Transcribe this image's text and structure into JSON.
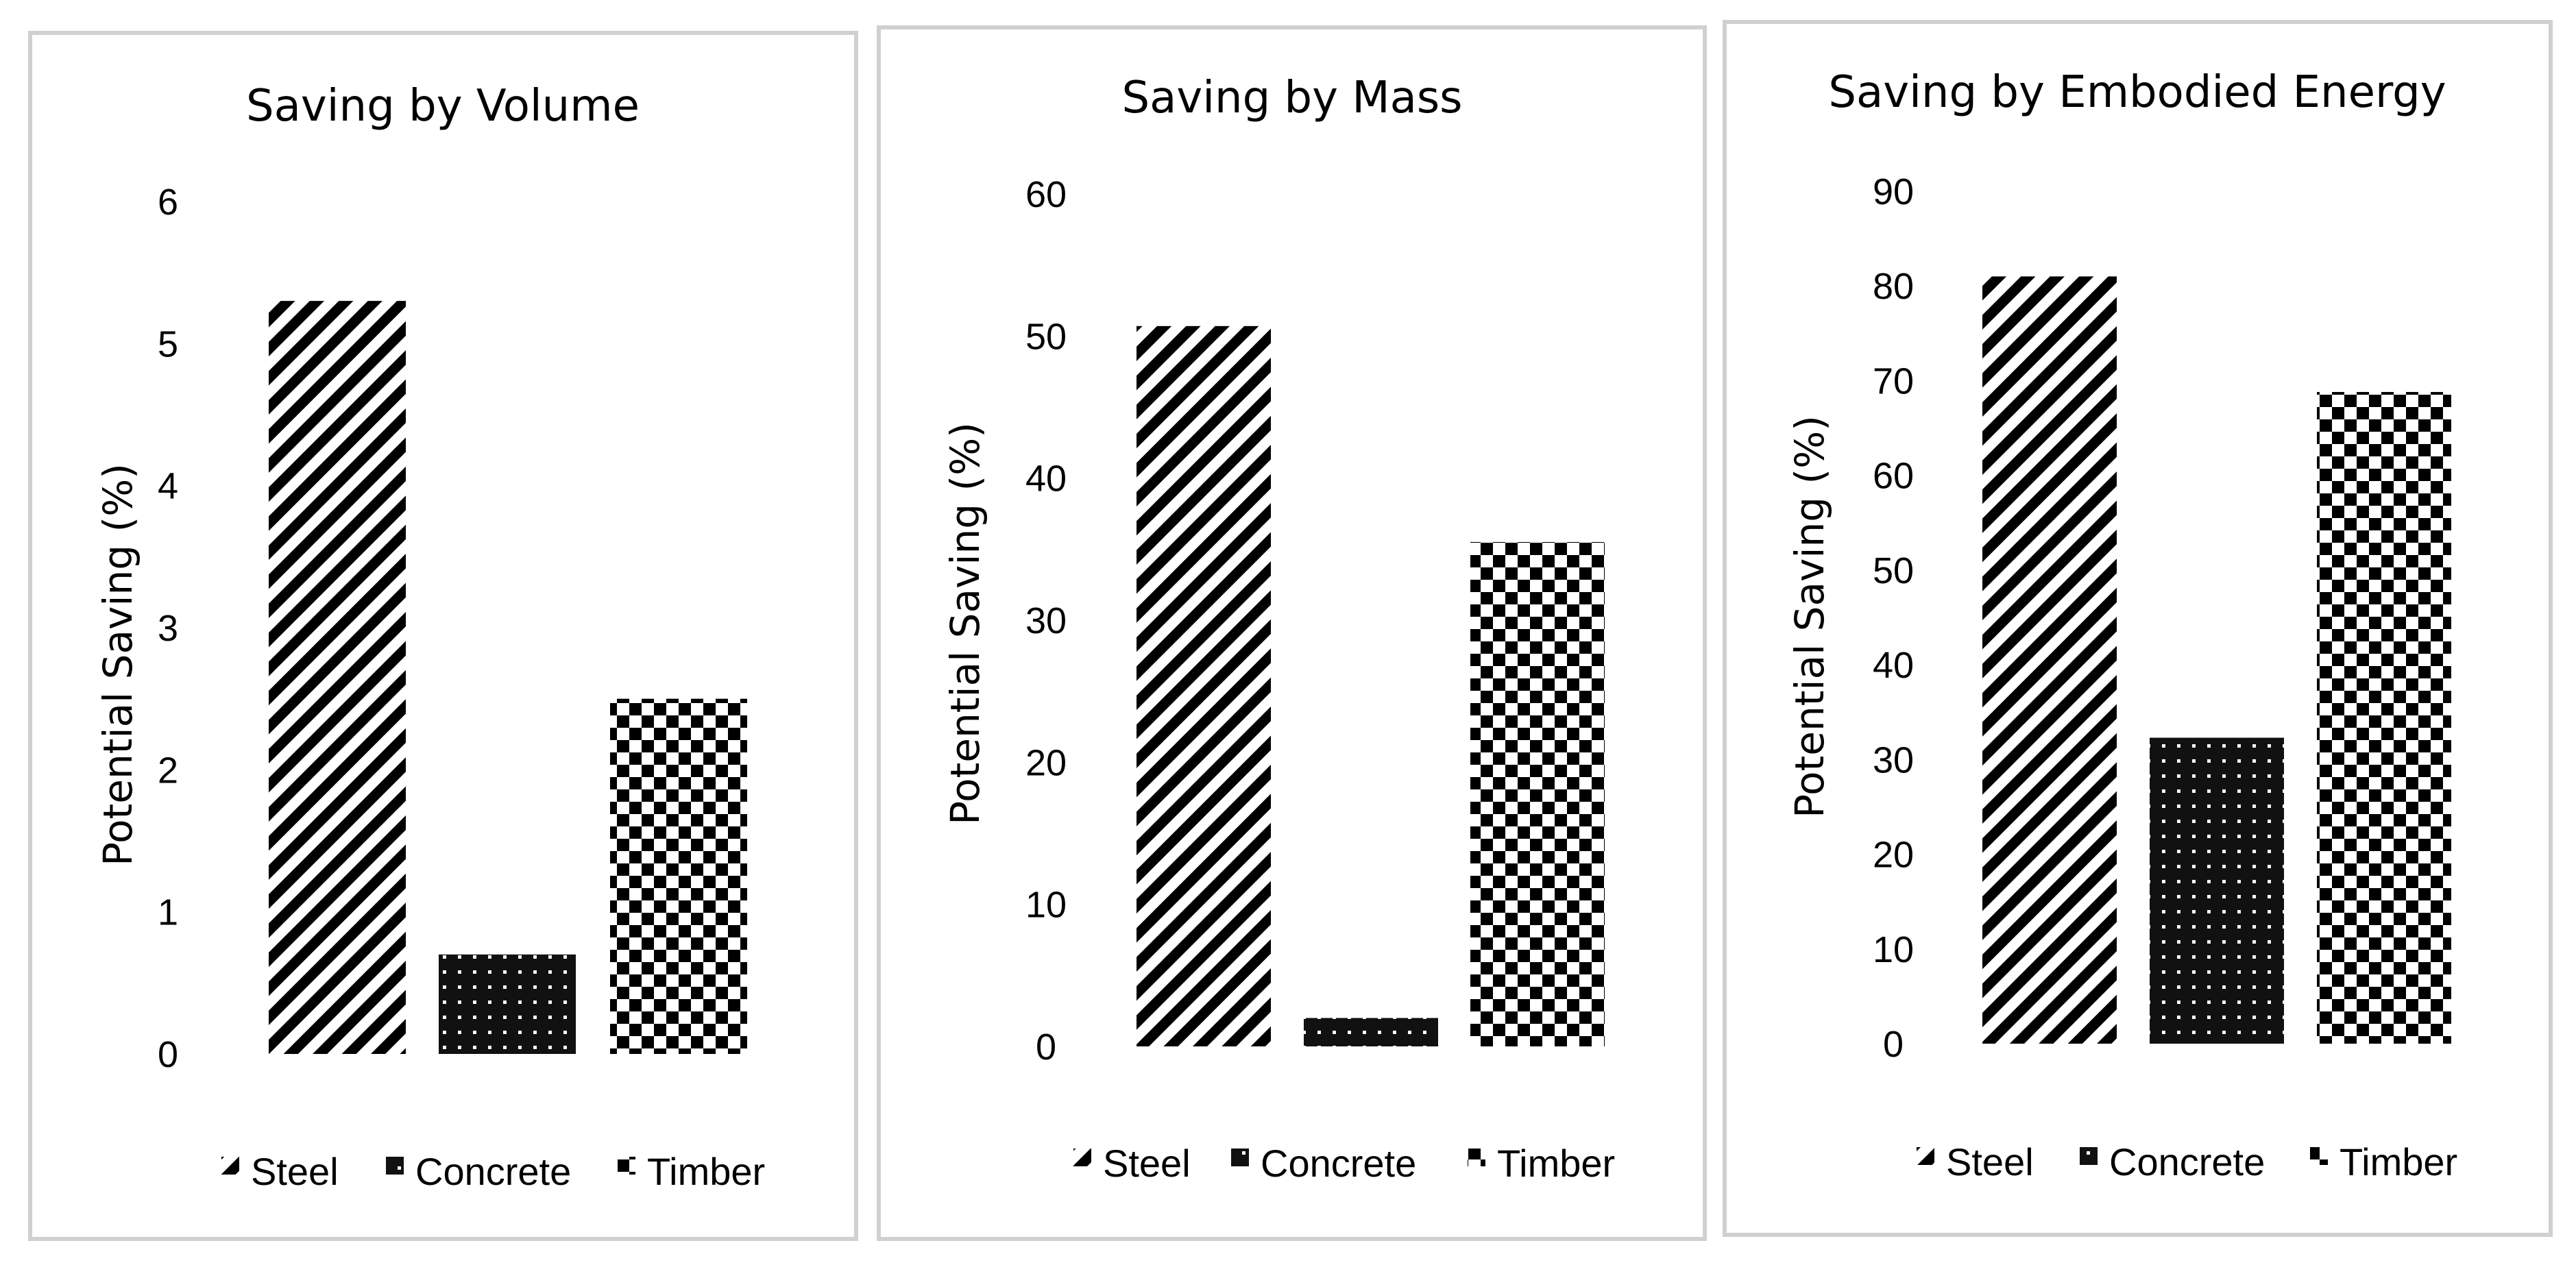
{
  "chart_data": [
    {
      "type": "bar",
      "title": "Saving by Volume",
      "xlabel": "",
      "ylabel": "Potential Saving (%)",
      "ylim": [
        0,
        6
      ],
      "yticks": [
        0,
        1,
        2,
        3,
        4,
        5,
        6
      ],
      "categories": [
        "Steel",
        "Concrete",
        "Timber"
      ],
      "values": [
        5.3,
        0.7,
        2.5
      ],
      "legend": [
        "Steel",
        "Concrete",
        "Timber"
      ],
      "legend_position": "bottom",
      "grid": false
    },
    {
      "type": "bar",
      "title": "Saving by Mass",
      "xlabel": "",
      "ylabel": "Potential Saving (%)",
      "ylim": [
        0,
        60
      ],
      "yticks": [
        0,
        10,
        20,
        30,
        40,
        50,
        60
      ],
      "categories": [
        "Steel",
        "Concrete",
        "Timber"
      ],
      "values": [
        50.7,
        2,
        35.5
      ],
      "legend": [
        "Steel",
        "Concrete",
        "Timber"
      ],
      "legend_position": "bottom",
      "grid": false
    },
    {
      "type": "bar",
      "title": "Saving by Embodied Energy",
      "xlabel": "",
      "ylabel": "Potential Saving (%)",
      "ylim": [
        0,
        90
      ],
      "yticks": [
        0,
        10,
        20,
        30,
        40,
        50,
        60,
        70,
        80,
        90
      ],
      "categories": [
        "Steel",
        "Concrete",
        "Timber"
      ],
      "values": [
        81,
        32.3,
        68.8
      ],
      "legend": [
        "Steel",
        "Concrete",
        "Timber"
      ],
      "legend_position": "bottom",
      "grid": false
    }
  ]
}
